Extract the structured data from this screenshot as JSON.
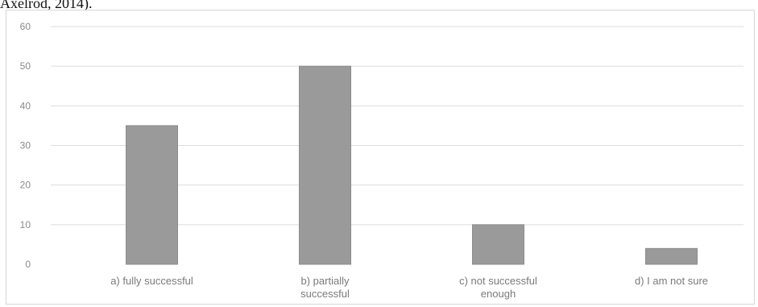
{
  "page": {
    "top_text": "Axelrod, 2014)."
  },
  "chart_data": {
    "type": "bar",
    "title": "",
    "xlabel": "",
    "ylabel": "",
    "categories": [
      [
        "a) fully successful"
      ],
      [
        "b)  partially",
        "successful"
      ],
      [
        "c) not successful",
        "enough"
      ],
      [
        "d) I am not sure"
      ]
    ],
    "values": [
      35,
      50,
      10,
      4
    ],
    "ylim": [
      0,
      60
    ],
    "yticks": [
      0,
      10,
      20,
      30,
      40,
      50,
      60
    ],
    "grid": true,
    "legend": "none",
    "colors": {
      "bar": "#9a9a9a",
      "bar_edge": "#8c8c8c",
      "gridline": "#dddddd",
      "tick_text": "#8a8a8a",
      "category_text": "#7a7a7a"
    }
  }
}
